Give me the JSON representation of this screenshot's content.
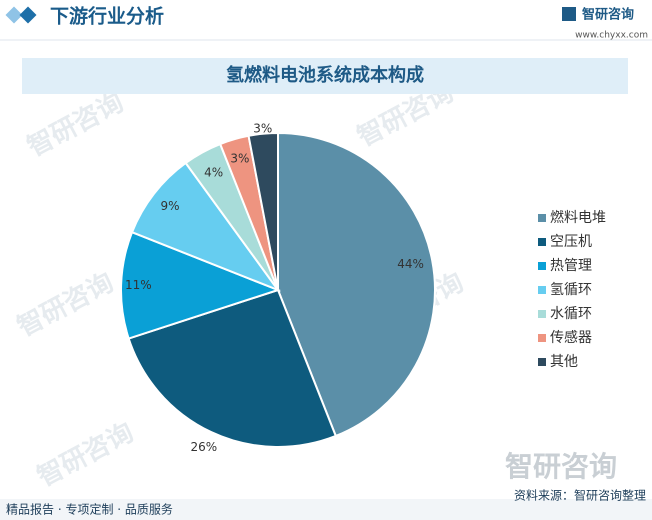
{
  "header": {
    "title": "下游行业分析",
    "logo": "智研咨询",
    "url": "www.chyxx.com"
  },
  "watermark": "智研咨询",
  "chart_data": {
    "type": "pie",
    "title": "氢燃料电池系统成本构成",
    "categories": [
      "燃料电堆",
      "空压机",
      "热管理",
      "氢循环",
      "水循环",
      "传感器",
      "其他"
    ],
    "values": [
      44,
      26,
      11,
      9,
      4,
      3,
      3
    ],
    "value_labels": [
      "44%",
      "26%",
      "11%",
      "9%",
      "4%",
      "3%",
      "3%"
    ],
    "colors": [
      "#5b8fa8",
      "#0e5b7e",
      "#0aa0d6",
      "#66cdf0",
      "#a8dcd9",
      "#ee9480",
      "#2e4a5e"
    ],
    "legend": "right"
  },
  "footer": {
    "left": "精品报告 · 专项定制 · 品质服务",
    "source": "资料来源：智研咨询整理"
  }
}
